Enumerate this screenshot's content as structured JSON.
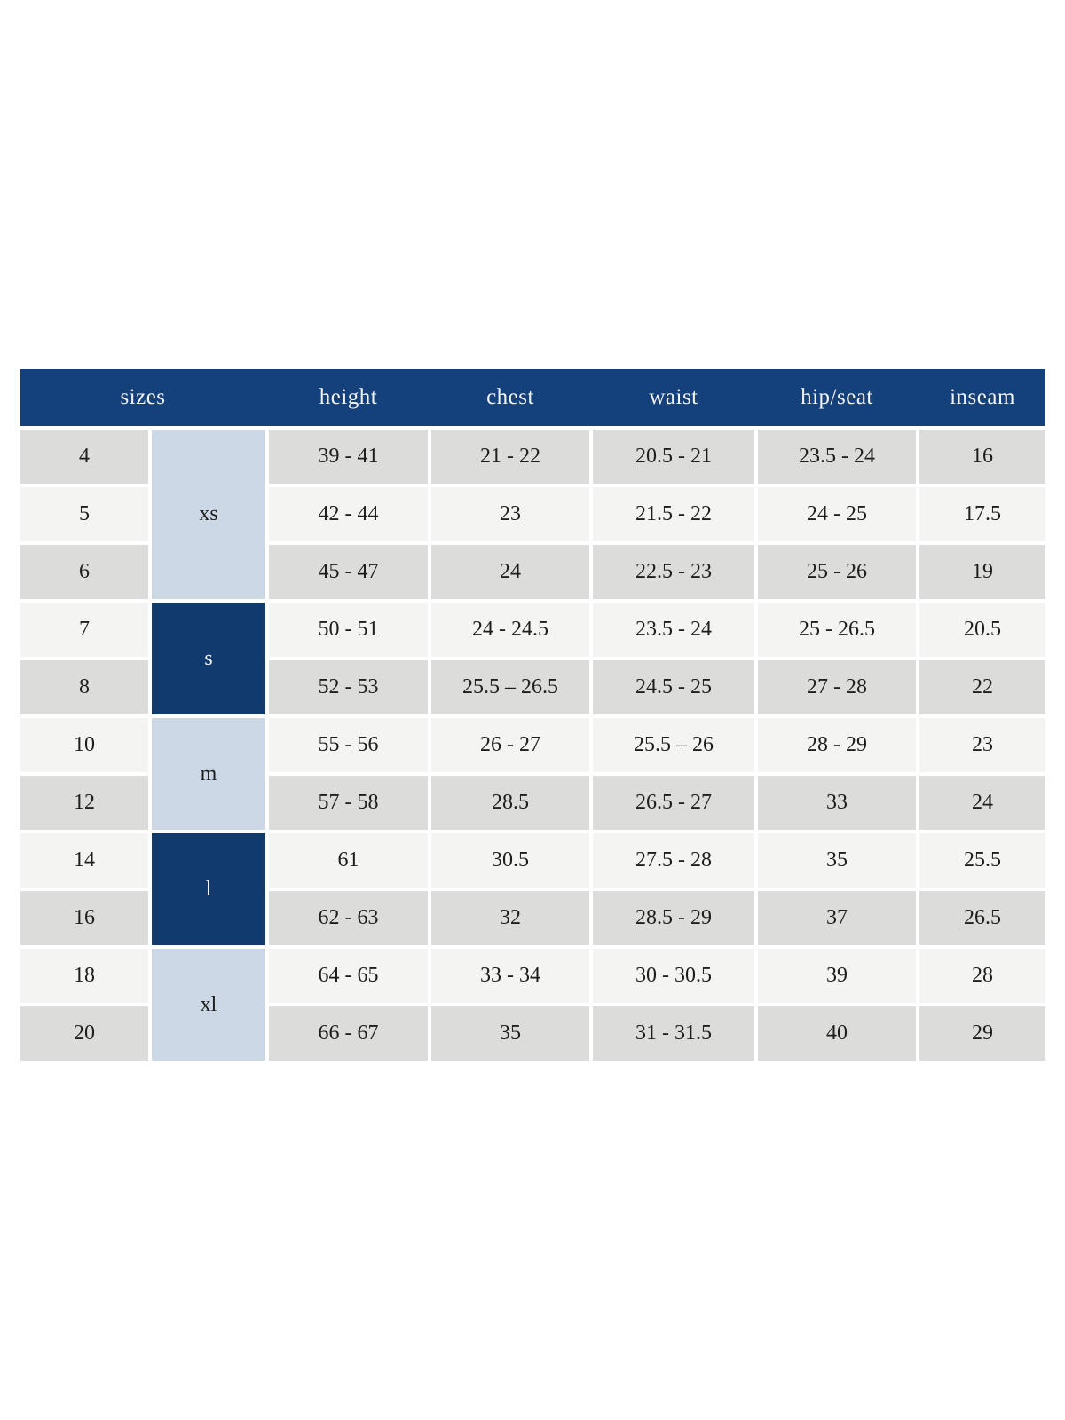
{
  "chart_data": {
    "type": "table",
    "columns": [
      "sizes",
      "height",
      "chest",
      "waist",
      "hip/seat",
      "inseam"
    ],
    "size_groups": [
      {
        "label": "xs",
        "row_start": 1,
        "row_span": 3,
        "shade": "light"
      },
      {
        "label": "s",
        "row_start": 4,
        "row_span": 2,
        "shade": "dark"
      },
      {
        "label": "m",
        "row_start": 6,
        "row_span": 2,
        "shade": "light"
      },
      {
        "label": "l",
        "row_start": 8,
        "row_span": 2,
        "shade": "dark"
      },
      {
        "label": "xl",
        "row_start": 10,
        "row_span": 2,
        "shade": "light"
      }
    ],
    "rows": [
      {
        "size": "4",
        "group": "xs",
        "height": "39 - 41",
        "chest": "21 - 22",
        "waist": "20.5 - 21",
        "hip_seat": "23.5 - 24",
        "inseam": "16"
      },
      {
        "size": "5",
        "group": "xs",
        "height": "42 - 44",
        "chest": "23",
        "waist": "21.5 - 22",
        "hip_seat": "24 - 25",
        "inseam": "17.5"
      },
      {
        "size": "6",
        "group": "xs",
        "height": "45 - 47",
        "chest": "24",
        "waist": "22.5 - 23",
        "hip_seat": "25 - 26",
        "inseam": "19"
      },
      {
        "size": "7",
        "group": "s",
        "height": "50 - 51",
        "chest": "24 - 24.5",
        "waist": "23.5 - 24",
        "hip_seat": "25 - 26.5",
        "inseam": "20.5"
      },
      {
        "size": "8",
        "group": "s",
        "height": "52 - 53",
        "chest": "25.5 – 26.5",
        "waist": "24.5 - 25",
        "hip_seat": "27 - 28",
        "inseam": "22"
      },
      {
        "size": "10",
        "group": "m",
        "height": "55 - 56",
        "chest": "26 - 27",
        "waist": "25.5 – 26",
        "hip_seat": "28 - 29",
        "inseam": "23"
      },
      {
        "size": "12",
        "group": "m",
        "height": "57 - 58",
        "chest": "28.5",
        "waist": "26.5 - 27",
        "hip_seat": "33",
        "inseam": "24"
      },
      {
        "size": "14",
        "group": "l",
        "height": "61",
        "chest": "30.5",
        "waist": "27.5 - 28",
        "hip_seat": "35",
        "inseam": "25.5"
      },
      {
        "size": "16",
        "group": "l",
        "height": "62 - 63",
        "chest": "32",
        "waist": "28.5 - 29",
        "hip_seat": "37",
        "inseam": "26.5"
      },
      {
        "size": "18",
        "group": "xl",
        "height": "64 - 65",
        "chest": "33 - 34",
        "waist": "30 - 30.5",
        "hip_seat": "39",
        "inseam": "28"
      },
      {
        "size": "20",
        "group": "xl",
        "height": "66 - 67",
        "chest": "35",
        "waist": "31 - 31.5",
        "hip_seat": "40",
        "inseam": "29"
      }
    ],
    "layout_hints": {
      "header_position": "top",
      "grid": "white 4px gaps between cells",
      "row_striping": "alternating gray and off-white starting with gray"
    }
  },
  "colors": {
    "header_bg": "#14407b",
    "header_text": "#f3f4f6",
    "group_dark_bg": "#113a6e",
    "group_light_bg": "#ccd8e6",
    "row_gray": "#dcdcda",
    "row_light": "#f4f4f2",
    "body_text": "#1e1e1e",
    "page_bg": "#ffffff"
  }
}
